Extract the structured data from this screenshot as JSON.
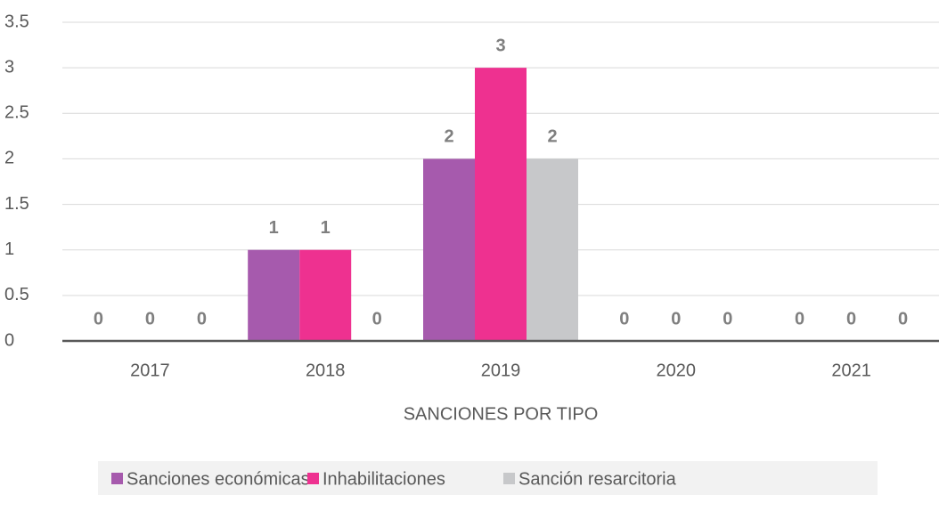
{
  "chart_data": {
    "type": "bar",
    "xlabel": "SANCIONES POR TIPO",
    "categories": [
      "2017",
      "2018",
      "2019",
      "2020",
      "2021"
    ],
    "series": [
      {
        "name": "Sanciones económicas",
        "color": "#a65aad",
        "values": [
          0,
          1,
          2,
          0,
          0
        ]
      },
      {
        "name": "Inhabilitaciones",
        "color": "#ee3190",
        "values": [
          0,
          1,
          3,
          0,
          0
        ]
      },
      {
        "name": "Sanción resarcitoria",
        "color": "#c7c8ca",
        "values": [
          0,
          0,
          2,
          0,
          0
        ]
      }
    ],
    "ylim": [
      0,
      3.5
    ],
    "yticks": [
      0,
      0.5,
      1,
      1.5,
      2,
      2.5,
      3,
      3.5
    ],
    "grid": true,
    "legend": "bottom"
  }
}
